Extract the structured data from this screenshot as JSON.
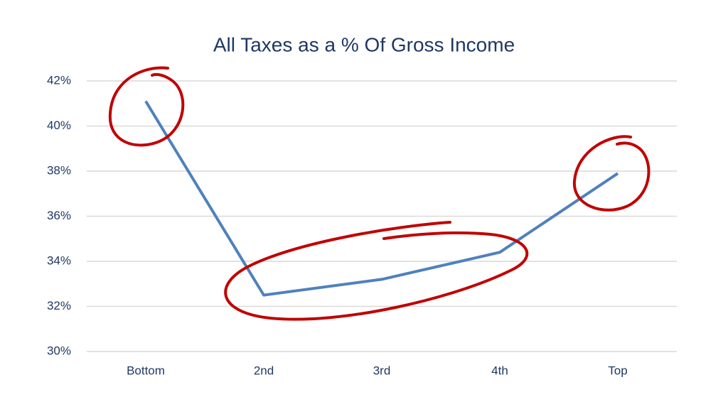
{
  "chart_data": {
    "type": "line",
    "title": "All Taxes as a % Of Gross Income",
    "categories": [
      "Bottom",
      "2nd",
      "3rd",
      "4th",
      "Top"
    ],
    "values": [
      41.1,
      32.5,
      33.2,
      34.4,
      37.9
    ],
    "color": "#4f81bd",
    "ylim": [
      30,
      42
    ],
    "yticks": [
      {
        "value": 30,
        "label": "30%"
      },
      {
        "value": 32,
        "label": "32%"
      },
      {
        "value": 34,
        "label": "34%"
      },
      {
        "value": 36,
        "label": "36%"
      },
      {
        "value": 38,
        "label": "38%"
      },
      {
        "value": 40,
        "label": "40%"
      },
      {
        "value": 42,
        "label": "42%"
      }
    ],
    "grid": true
  }
}
